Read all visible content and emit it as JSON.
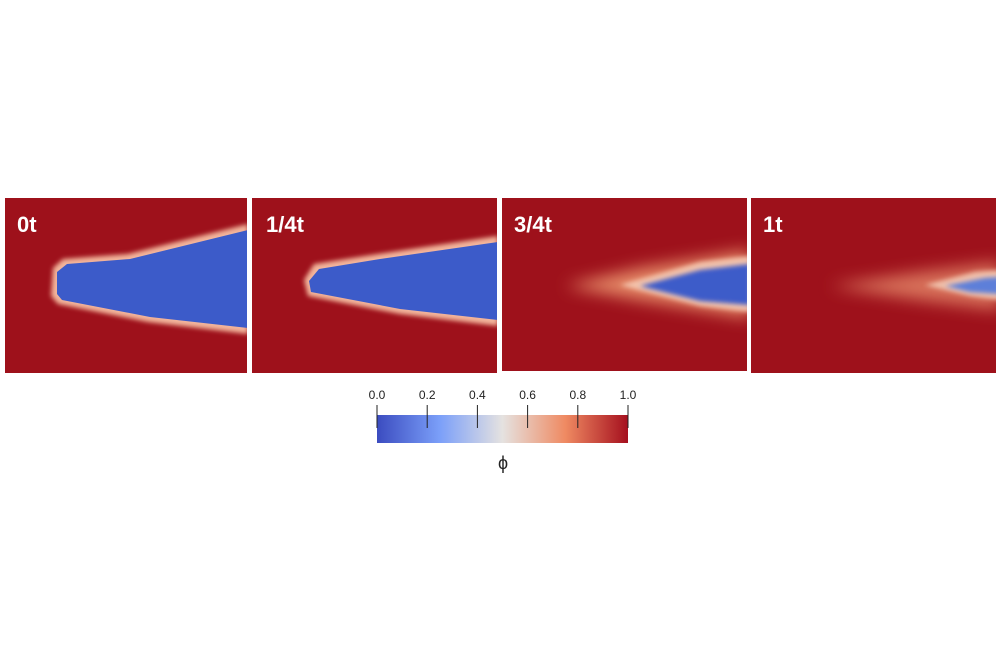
{
  "panels": [
    {
      "label": "0t"
    },
    {
      "label": "1/4t"
    },
    {
      "label": "3/4t"
    },
    {
      "label": "1t"
    }
  ],
  "colorbar": {
    "label": "ϕ",
    "lim": [
      0,
      1
    ],
    "ticks": [
      {
        "value": 0,
        "label": "0.0"
      },
      {
        "value": 0.2,
        "label": "0.2"
      },
      {
        "value": 0.4,
        "label": "0.4"
      },
      {
        "value": 0.6,
        "label": "0.6"
      },
      {
        "value": 0.8,
        "label": "0.8"
      },
      {
        "value": 1,
        "label": "1.0"
      }
    ]
  }
}
